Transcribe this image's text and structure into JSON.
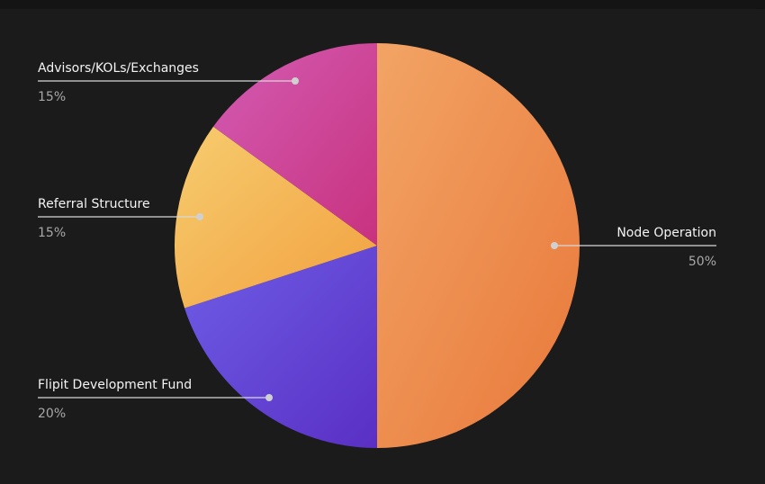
{
  "chart_data": {
    "type": "pie",
    "title": "",
    "slices": [
      {
        "label": "Node Operation",
        "value": 50,
        "value_label": "50%",
        "color_start": "#f2a465",
        "color_end": "#e8783a"
      },
      {
        "label": "Flipit Development Fund",
        "value": 20,
        "value_label": "20%",
        "color_start": "#6e5ee6",
        "color_end": "#5a2fc4"
      },
      {
        "label": "Referral Structure",
        "value": 15,
        "value_label": "15%",
        "color_start": "#f6cc6e",
        "color_end": "#f2a040"
      },
      {
        "label": "Advisors/KOLs/Exchanges",
        "value": 15,
        "value_label": "15%",
        "color_start": "#d35cb4",
        "color_end": "#c8327e"
      }
    ],
    "start_angle_deg": 0,
    "direction": "clockwise",
    "legend": "callouts"
  }
}
